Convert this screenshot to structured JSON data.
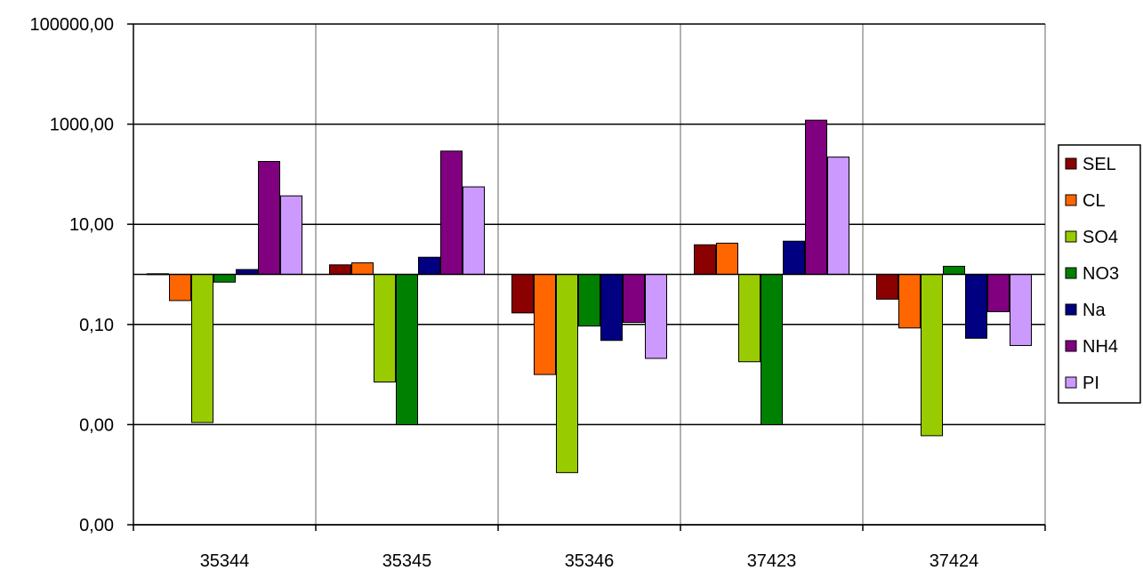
{
  "chart_data": {
    "type": "bar",
    "scale": "log10",
    "baseline": 1,
    "categories": [
      "35344",
      "35345",
      "35346",
      "37423",
      "37424"
    ],
    "y_ticks": [
      {
        "value": 100000,
        "label": "100000,00"
      },
      {
        "value": 1000,
        "label": "1000,00"
      },
      {
        "value": 10,
        "label": "10,00"
      },
      {
        "value": 0.1,
        "label": "0,10"
      },
      {
        "value": 0.001,
        "label": "0,00"
      },
      {
        "value": 1e-05,
        "label": "0,00"
      }
    ],
    "ylim": [
      1e-05,
      100000
    ],
    "grid": true,
    "legend_position": "right",
    "series": [
      {
        "name": "SEL",
        "color": "#8B0000",
        "values": [
          1.03,
          1.55,
          0.17,
          3.9,
          0.32
        ]
      },
      {
        "name": "CL",
        "color": "#FF6600",
        "values": [
          0.3,
          1.7,
          0.01,
          4.2,
          0.085
        ]
      },
      {
        "name": "SO4",
        "color": "#99CC00",
        "values": [
          0.0011,
          0.0071,
          0.00011,
          0.018,
          0.0006
        ]
      },
      {
        "name": "NO3",
        "color": "#008000",
        "values": [
          0.7,
          0.001,
          0.093,
          0.001,
          1.45
        ]
      },
      {
        "name": "Na",
        "color": "#000080",
        "values": [
          1.25,
          2.2,
          0.048,
          4.6,
          0.053
        ]
      },
      {
        "name": "NH4",
        "color": "#800080",
        "values": [
          180,
          290,
          0.11,
          1200,
          0.18
        ]
      },
      {
        "name": "PI",
        "color": "#CC99FF",
        "values": [
          37,
          56,
          0.021,
          220,
          0.038
        ]
      }
    ]
  }
}
